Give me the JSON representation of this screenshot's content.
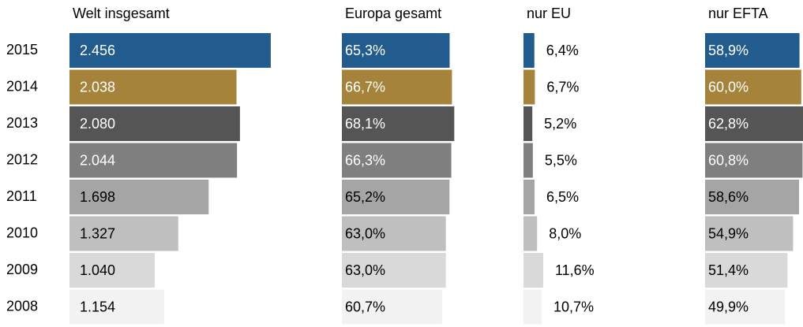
{
  "chart_data": {
    "type": "bar",
    "orientation": "horizontal",
    "categories": [
      "2015",
      "2014",
      "2013",
      "2012",
      "2011",
      "2010",
      "2009",
      "2008"
    ],
    "colors": [
      "#225b8e",
      "#a6833a",
      "#555555",
      "#7f7f7f",
      "#a5a5a5",
      "#bfbfbf",
      "#d9d9d9",
      "#f2f2f2"
    ],
    "label_colors": [
      "#ffffff",
      "#ffffff",
      "#ffffff",
      "#ffffff",
      "#000000",
      "#000000",
      "#000000",
      "#000000"
    ],
    "series": [
      {
        "name": "Welt insgesamt",
        "values": [
          2456,
          2038,
          2080,
          2044,
          1698,
          1327,
          1040,
          1154
        ],
        "value_labels": [
          "2.456",
          "2.038",
          "2.080",
          "2.044",
          "1.698",
          "1.327",
          "1.040",
          "1.154"
        ]
      },
      {
        "name": "Europa gesamt",
        "values": [
          65.3,
          66.7,
          68.1,
          66.3,
          65.2,
          63.0,
          63.0,
          60.7
        ],
        "value_labels": [
          "65,3%",
          "66,7%",
          "68,1%",
          "66,3%",
          "65,2%",
          "63,0%",
          "63,0%",
          "60,7%"
        ]
      },
      {
        "name": "nur EU",
        "values": [
          6.4,
          6.7,
          5.2,
          5.5,
          6.5,
          8.0,
          11.6,
          10.7
        ],
        "value_labels": [
          "6,4%",
          "6,7%",
          "5,2%",
          "5,5%",
          "6,5%",
          "8,0%",
          "11,6%",
          "10,7%"
        ]
      },
      {
        "name": "nur EFTA",
        "values": [
          58.9,
          60.0,
          62.8,
          60.8,
          58.6,
          54.9,
          51.4,
          49.9
        ],
        "value_labels": [
          "58,9%",
          "60,0%",
          "62,8%",
          "60,8%",
          "58,6%",
          "54,9%",
          "51,4%",
          "49,9%"
        ]
      }
    ]
  }
}
